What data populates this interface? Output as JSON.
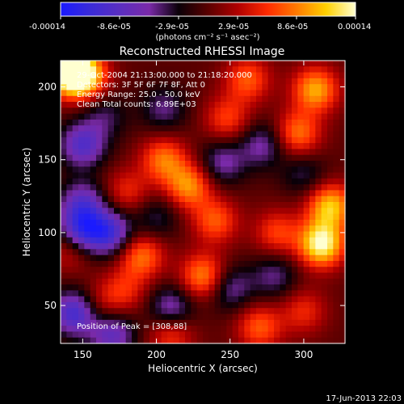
{
  "colorbar": {
    "ticks": [
      "-0.00014",
      "-8.6e-05",
      "-2.9e-05",
      "2.9e-05",
      "8.6e-05",
      "0.00014"
    ],
    "unit_label": "(photons cm⁻² s⁻¹ asec⁻²)",
    "colors": [
      "#1a1aff",
      "#3a2bd8",
      "#5a2ec0",
      "#7a2aa8",
      "#0a0008",
      "#5a0000",
      "#b00000",
      "#ff2a00",
      "#ff7a00",
      "#ffd000",
      "#ffffd0"
    ]
  },
  "chart_data": {
    "type": "heatmap",
    "title": "Reconstructed RHESSI Image",
    "xlabel": "Heliocentric X (arcsec)",
    "ylabel": "Heliocentric Y (arcsec)",
    "xlim": [
      135,
      328
    ],
    "ylim": [
      24,
      218
    ],
    "x_ticks": [
      150,
      200,
      250,
      300
    ],
    "y_ticks": [
      50,
      100,
      150,
      200
    ],
    "x_tick_labels": [
      "150",
      "200",
      "250",
      "300"
    ],
    "y_tick_labels": [
      "50",
      "100",
      "150",
      "200"
    ],
    "vmin": -0.00014,
    "vmax": 0.00014,
    "annotations": [
      "29-Oct-2004 21:13:00.000 to 21:18:20.000",
      "Detectors: 3F 5F 6F 7F 8F, Att 0",
      "Energy Range: 25.0 - 50.0 keV",
      "Clean    Total counts: 6.89E+03"
    ],
    "peak_label": "Position of Peak = [308,88]",
    "peak": [
      308,
      88
    ],
    "sources": [
      {
        "x": 312,
        "y": 92,
        "value": 0.00014
      },
      {
        "x": 318,
        "y": 118,
        "value": 0.00011
      },
      {
        "x": 296,
        "y": 168,
        "value": 8e-05
      },
      {
        "x": 308,
        "y": 198,
        "value": 0.0001
      },
      {
        "x": 262,
        "y": 205,
        "value": 7e-05
      },
      {
        "x": 150,
        "y": 208,
        "value": 0.00013
      },
      {
        "x": 140,
        "y": 210,
        "value": 0.00012
      },
      {
        "x": 205,
        "y": 150,
        "value": 8e-05
      },
      {
        "x": 222,
        "y": 132,
        "value": 9e-05
      },
      {
        "x": 240,
        "y": 108,
        "value": 7e-05
      },
      {
        "x": 248,
        "y": 178,
        "value": 6e-05
      },
      {
        "x": 180,
        "y": 128,
        "value": 5e-05
      },
      {
        "x": 232,
        "y": 70,
        "value": 9e-05
      },
      {
        "x": 270,
        "y": 35,
        "value": 7e-05
      },
      {
        "x": 190,
        "y": 84,
        "value": 8e-05
      },
      {
        "x": 178,
        "y": 60,
        "value": 5e-05
      },
      {
        "x": 210,
        "y": 30,
        "value": 6e-05
      },
      {
        "x": 142,
        "y": 90,
        "value": 6e-05
      },
      {
        "x": 282,
        "y": 100,
        "value": 6e-05
      },
      {
        "x": 160,
        "y": 50,
        "value": 4e-05
      },
      {
        "x": 300,
        "y": 46,
        "value": 5e-05
      },
      {
        "x": 150,
        "y": 160,
        "value": -9e-05
      },
      {
        "x": 150,
        "y": 120,
        "value": -8e-05
      },
      {
        "x": 148,
        "y": 100,
        "value": -0.00011
      },
      {
        "x": 168,
        "y": 100,
        "value": -0.0001
      },
      {
        "x": 145,
        "y": 45,
        "value": -0.00011
      },
      {
        "x": 170,
        "y": 30,
        "value": -8e-05
      },
      {
        "x": 210,
        "y": 48,
        "value": -7e-05
      },
      {
        "x": 245,
        "y": 148,
        "value": -6e-05
      },
      {
        "x": 250,
        "y": 62,
        "value": -6e-05
      },
      {
        "x": 272,
        "y": 160,
        "value": -6e-05
      },
      {
        "x": 205,
        "y": 185,
        "value": -5e-05
      },
      {
        "x": 165,
        "y": 180,
        "value": -4e-05
      },
      {
        "x": 200,
        "y": 110,
        "value": -4e-05
      },
      {
        "x": 280,
        "y": 70,
        "value": -5e-05
      },
      {
        "x": 300,
        "y": 140,
        "value": -4e-05
      }
    ]
  },
  "footer": {
    "timestamp": "17-Jun-2013 22:03"
  }
}
